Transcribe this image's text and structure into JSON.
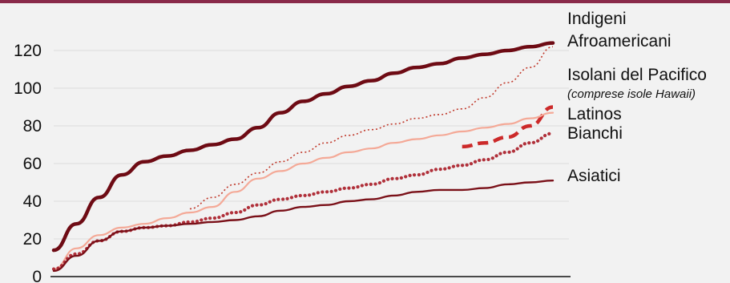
{
  "colors": {
    "top_rule": "#8a2a4a",
    "grid": "#dcdcdc",
    "axis": "#111111"
  },
  "chart_data": {
    "type": "line",
    "xlabel": "",
    "ylabel": "",
    "ylim": [
      0,
      130
    ],
    "yticks": [
      0,
      20,
      40,
      60,
      80,
      100,
      120
    ],
    "ytick_labels": [
      "0",
      "20",
      "40",
      "60",
      "80",
      "100",
      "120"
    ],
    "grid": true,
    "legend": "direct labels at right end of lines",
    "x": [
      0,
      1,
      2,
      3,
      4,
      5,
      6,
      7,
      8,
      9,
      10,
      11,
      12,
      13,
      14,
      15,
      16,
      17,
      18,
      19,
      20,
      21,
      22
    ],
    "series": [
      {
        "name": "Indigeni",
        "color": "#c0392b",
        "style": "dotted-thin",
        "values": [
          null,
          null,
          null,
          null,
          null,
          null,
          36,
          42,
          49,
          55,
          61,
          66,
          71,
          75,
          78,
          81,
          84,
          86,
          89,
          95,
          103,
          111,
          122
        ]
      },
      {
        "name": "Afroamericani",
        "color": "#6e0b14",
        "style": "solid-thick",
        "values": [
          14,
          28,
          42,
          54,
          61,
          64,
          67,
          70,
          73,
          79,
          87,
          93,
          97,
          101,
          104,
          108,
          111,
          113,
          116,
          118,
          120,
          122,
          124
        ]
      },
      {
        "name": "Isolani del Pacifico",
        "sublabel": "(comprese isole Hawaii)",
        "color": "#cc2a2a",
        "style": "dashed-thick",
        "values": [
          null,
          null,
          null,
          null,
          null,
          null,
          null,
          null,
          null,
          null,
          null,
          null,
          null,
          null,
          null,
          null,
          null,
          null,
          69,
          71,
          74,
          80,
          90
        ]
      },
      {
        "name": "Latinos",
        "color": "#f4a997",
        "style": "solid-thin",
        "values": [
          4,
          15,
          22,
          26,
          28,
          31,
          34,
          37,
          45,
          52,
          56,
          60,
          63,
          66,
          68,
          71,
          73,
          75,
          77,
          79,
          81,
          84,
          87
        ]
      },
      {
        "name": "Bianchi",
        "color": "#b0303a",
        "style": "dotted-thick",
        "values": [
          4,
          12,
          19,
          24,
          26,
          27,
          29,
          31,
          34,
          38,
          41,
          43,
          45,
          47,
          49,
          52,
          54,
          57,
          59,
          62,
          66,
          71,
          76
        ]
      },
      {
        "name": "Asiatici",
        "color": "#7a1018",
        "style": "solid-medium",
        "values": [
          3,
          11,
          19,
          24,
          26,
          27,
          28,
          29,
          30,
          32,
          35,
          37,
          38,
          40,
          41,
          43,
          45,
          46,
          46,
          47,
          49,
          50,
          51
        ]
      }
    ]
  }
}
